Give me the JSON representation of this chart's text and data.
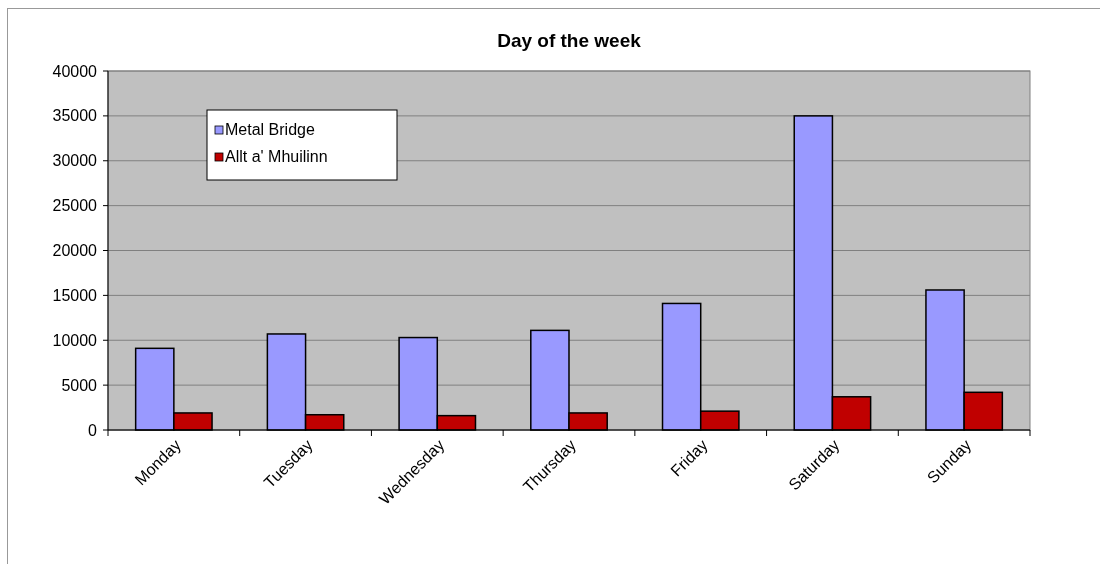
{
  "chart_data": {
    "type": "bar",
    "title": "Day of the week",
    "categories": [
      "Monday",
      "Tuesday",
      "Wednesday",
      "Thursday",
      "Friday",
      "Saturday",
      "Sunday"
    ],
    "series": [
      {
        "name": "Metal Bridge",
        "color": "#9999ff",
        "values": [
          9100,
          10700,
          10300,
          11100,
          14100,
          35000,
          15600
        ]
      },
      {
        "name": "Allt a' Mhuilinn",
        "color": "#c00000",
        "values": [
          1900,
          1700,
          1600,
          1900,
          2100,
          3700,
          4200
        ]
      }
    ],
    "ylim": [
      0,
      40000
    ],
    "yticks": [
      0,
      5000,
      10000,
      15000,
      20000,
      25000,
      30000,
      35000,
      40000
    ],
    "grid": "y",
    "legend": "top left"
  }
}
